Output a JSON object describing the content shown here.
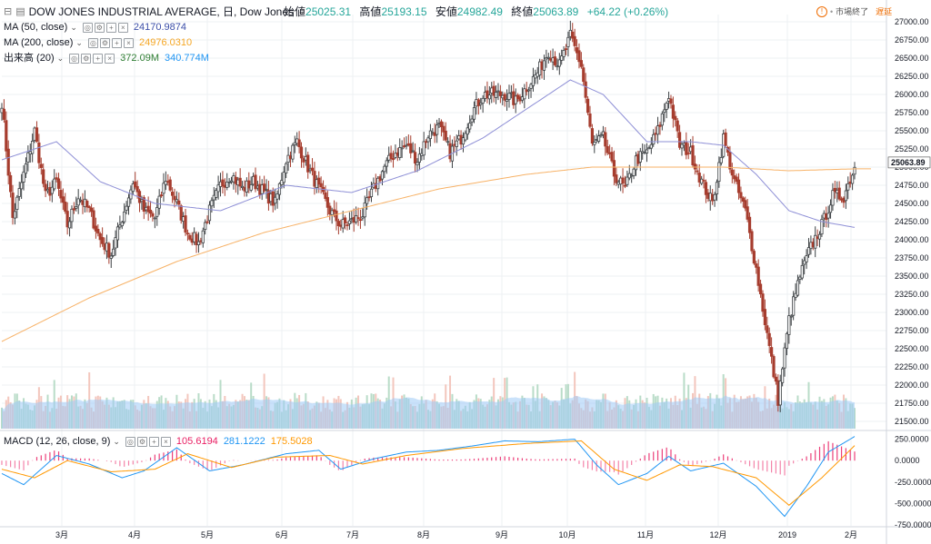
{
  "header": {
    "symbol": "DOW JONES INDUSTRIAL AVERAGE, 日, Dow Jones",
    "open_label": "始値",
    "open": "25025.31",
    "high_label": "高値",
    "high": "25193.15",
    "low_label": "安値",
    "low": "24982.49",
    "close_label": "終値",
    "close": "25063.89",
    "change": "+64.22 (+0.26%)"
  },
  "status": {
    "market": "市場終了",
    "delay": "遅延"
  },
  "indicators": {
    "ma50": {
      "label": "MA (50, close)",
      "value": "24170.9874",
      "color": "#3b4ea8"
    },
    "ma200": {
      "label": "MA (200, close)",
      "value": "24976.0310",
      "color": "#f5a623"
    },
    "volume": {
      "label": "出来高 (20)",
      "value1": "372.09M",
      "value2": "340.774M",
      "color1": "#2e7d32",
      "color2": "#2196f3"
    },
    "macd": {
      "label": "MACD (12, 26, close, 9)",
      "hist": "105.6194",
      "macd": "281.1222",
      "signal": "175.5028",
      "hist_color": "#e91e63",
      "macd_color": "#2196f3",
      "signal_color": "#ff9800"
    }
  },
  "colors": {
    "up": "#3c4043",
    "down": "#a63d2e",
    "up_fill": "#ffffff",
    "ma50": "#8e8fd6",
    "ma200": "#f7b267",
    "vol_up": "#b9dcc8",
    "vol_down": "#f3c6bd",
    "vol_ma": "#9ecbf5",
    "grid": "#eef0f3",
    "axis_text": "#131722",
    "last_price_bg": "#ffffff"
  },
  "chart_data": {
    "type": "candlestick",
    "price_axis_ticks": [
      27000,
      26750,
      26500,
      26250,
      26000,
      25750,
      25500,
      25250,
      25000,
      24750,
      24500,
      24250,
      24000,
      23750,
      23500,
      23250,
      23000,
      22750,
      22500,
      22250,
      22000,
      21750,
      21500
    ],
    "price_axis_labels": [
      "27000.00",
      "26750.00",
      "26500.00",
      "26250.00",
      "26000.00",
      "25750.00",
      "25500.00",
      "25250.00",
      "25000.00",
      "24750.00",
      "24500.00",
      "24250.00",
      "24000.00",
      "23750.00",
      "23500.00",
      "23250.00",
      "23000.00",
      "22750.00",
      "22500.00",
      "22250.00",
      "22000.00",
      "21750.00",
      "21500.00"
    ],
    "ylim": [
      21400,
      27100
    ],
    "last_price": "25063.89",
    "x_labels": [
      "3月",
      "4月",
      "5月",
      "6月",
      "7月",
      "8月",
      "9月",
      "10月",
      "11月",
      "12月",
      "2019",
      "2月"
    ],
    "anchors": [
      {
        "d": 0,
        "p": 25900
      },
      {
        "d": 5,
        "p": 24300
      },
      {
        "d": 10,
        "p": 24900
      },
      {
        "d": 15,
        "p": 25500
      },
      {
        "d": 20,
        "p": 24600
      },
      {
        "d": 25,
        "p": 24800
      },
      {
        "d": 30,
        "p": 24200
      },
      {
        "d": 35,
        "p": 24600
      },
      {
        "d": 40,
        "p": 24400
      },
      {
        "d": 45,
        "p": 24000
      },
      {
        "d": 50,
        "p": 23800
      },
      {
        "d": 55,
        "p": 24300
      },
      {
        "d": 60,
        "p": 24800
      },
      {
        "d": 65,
        "p": 24400
      },
      {
        "d": 70,
        "p": 24300
      },
      {
        "d": 75,
        "p": 24850
      },
      {
        "d": 80,
        "p": 24500
      },
      {
        "d": 85,
        "p": 24100
      },
      {
        "d": 90,
        "p": 23950
      },
      {
        "d": 95,
        "p": 24400
      },
      {
        "d": 100,
        "p": 24750
      },
      {
        "d": 105,
        "p": 24900
      },
      {
        "d": 110,
        "p": 24700
      },
      {
        "d": 115,
        "p": 24800
      },
      {
        "d": 120,
        "p": 24650
      },
      {
        "d": 125,
        "p": 24500
      },
      {
        "d": 130,
        "p": 25100
      },
      {
        "d": 135,
        "p": 25350
      },
      {
        "d": 140,
        "p": 25000
      },
      {
        "d": 145,
        "p": 24700
      },
      {
        "d": 150,
        "p": 24400
      },
      {
        "d": 155,
        "p": 24200
      },
      {
        "d": 160,
        "p": 24250
      },
      {
        "d": 165,
        "p": 24350
      },
      {
        "d": 170,
        "p": 24700
      },
      {
        "d": 175,
        "p": 25000
      },
      {
        "d": 180,
        "p": 25200
      },
      {
        "d": 185,
        "p": 25300
      },
      {
        "d": 190,
        "p": 25100
      },
      {
        "d": 195,
        "p": 25450
      },
      {
        "d": 200,
        "p": 25550
      },
      {
        "d": 205,
        "p": 25200
      },
      {
        "d": 210,
        "p": 25400
      },
      {
        "d": 215,
        "p": 25750
      },
      {
        "d": 220,
        "p": 26000
      },
      {
        "d": 225,
        "p": 26000
      },
      {
        "d": 230,
        "p": 26000
      },
      {
        "d": 235,
        "p": 25900
      },
      {
        "d": 240,
        "p": 26100
      },
      {
        "d": 245,
        "p": 26300
      },
      {
        "d": 250,
        "p": 26600
      },
      {
        "d": 255,
        "p": 26400
      },
      {
        "d": 260,
        "p": 26800
      },
      {
        "d": 265,
        "p": 26400
      },
      {
        "d": 270,
        "p": 25300
      },
      {
        "d": 275,
        "p": 25400
      },
      {
        "d": 280,
        "p": 24900
      },
      {
        "d": 285,
        "p": 24700
      },
      {
        "d": 290,
        "p": 25100
      },
      {
        "d": 295,
        "p": 25200
      },
      {
        "d": 300,
        "p": 25500
      },
      {
        "d": 305,
        "p": 26000
      },
      {
        "d": 310,
        "p": 25300
      },
      {
        "d": 315,
        "p": 25200
      },
      {
        "d": 320,
        "p": 24800
      },
      {
        "d": 325,
        "p": 24500
      },
      {
        "d": 330,
        "p": 25400
      },
      {
        "d": 335,
        "p": 24800
      },
      {
        "d": 340,
        "p": 24400
      },
      {
        "d": 345,
        "p": 23600
      },
      {
        "d": 350,
        "p": 22700
      },
      {
        "d": 355,
        "p": 21800
      },
      {
        "d": 360,
        "p": 22900
      },
      {
        "d": 365,
        "p": 23500
      },
      {
        "d": 370,
        "p": 23900
      },
      {
        "d": 375,
        "p": 24200
      },
      {
        "d": 380,
        "p": 24600
      },
      {
        "d": 385,
        "p": 24600
      },
      {
        "d": 390,
        "p": 25000
      }
    ],
    "ma50_anchors": [
      {
        "d": 0,
        "p": 25100
      },
      {
        "d": 25,
        "p": 25350
      },
      {
        "d": 45,
        "p": 24800
      },
      {
        "d": 70,
        "p": 24500
      },
      {
        "d": 100,
        "p": 24400
      },
      {
        "d": 130,
        "p": 24750
      },
      {
        "d": 160,
        "p": 24650
      },
      {
        "d": 190,
        "p": 24950
      },
      {
        "d": 220,
        "p": 25400
      },
      {
        "d": 240,
        "p": 25800
      },
      {
        "d": 260,
        "p": 26200
      },
      {
        "d": 275,
        "p": 26000
      },
      {
        "d": 295,
        "p": 25350
      },
      {
        "d": 315,
        "p": 25350
      },
      {
        "d": 330,
        "p": 25300
      },
      {
        "d": 345,
        "p": 24900
      },
      {
        "d": 360,
        "p": 24400
      },
      {
        "d": 375,
        "p": 24250
      },
      {
        "d": 390,
        "p": 24170
      }
    ],
    "ma200_anchors": [
      {
        "d": 0,
        "p": 22600
      },
      {
        "d": 40,
        "p": 23200
      },
      {
        "d": 80,
        "p": 23700
      },
      {
        "d": 120,
        "p": 24100
      },
      {
        "d": 160,
        "p": 24400
      },
      {
        "d": 200,
        "p": 24700
      },
      {
        "d": 240,
        "p": 24900
      },
      {
        "d": 270,
        "p": 25000
      },
      {
        "d": 300,
        "p": 25000
      },
      {
        "d": 330,
        "p": 25000
      },
      {
        "d": 360,
        "p": 24950
      },
      {
        "d": 390,
        "p": 24976
      }
    ],
    "macd_axis_ticks": [
      250,
      0,
      -250,
      -500,
      -750
    ],
    "macd_axis_labels": [
      "250.0000",
      "0.0000",
      "-250.0000",
      "-500.0000",
      "-750.0000"
    ],
    "macd_ylim": [
      -760,
      330
    ],
    "macd_anchors": [
      {
        "d": 0,
        "m": -150
      },
      {
        "d": 10,
        "m": -280
      },
      {
        "d": 25,
        "m": 60
      },
      {
        "d": 40,
        "m": -40
      },
      {
        "d": 55,
        "m": -200
      },
      {
        "d": 65,
        "m": -120
      },
      {
        "d": 80,
        "m": 150
      },
      {
        "d": 95,
        "m": -120
      },
      {
        "d": 110,
        "m": -50
      },
      {
        "d": 130,
        "m": 80
      },
      {
        "d": 145,
        "m": 120
      },
      {
        "d": 155,
        "m": -100
      },
      {
        "d": 170,
        "m": 20
      },
      {
        "d": 185,
        "m": 100
      },
      {
        "d": 200,
        "m": 120
      },
      {
        "d": 215,
        "m": 170
      },
      {
        "d": 230,
        "m": 230
      },
      {
        "d": 245,
        "m": 220
      },
      {
        "d": 262,
        "m": 250
      },
      {
        "d": 272,
        "m": -50
      },
      {
        "d": 282,
        "m": -280
      },
      {
        "d": 295,
        "m": -150
      },
      {
        "d": 305,
        "m": 50
      },
      {
        "d": 315,
        "m": -120
      },
      {
        "d": 330,
        "m": -30
      },
      {
        "d": 345,
        "m": -300
      },
      {
        "d": 358,
        "m": -650
      },
      {
        "d": 368,
        "m": -300
      },
      {
        "d": 378,
        "m": 100
      },
      {
        "d": 390,
        "m": 281
      }
    ],
    "signal_anchors": [
      {
        "d": 0,
        "m": -100
      },
      {
        "d": 15,
        "m": -200
      },
      {
        "d": 30,
        "m": 0
      },
      {
        "d": 50,
        "m": -130
      },
      {
        "d": 70,
        "m": -100
      },
      {
        "d": 85,
        "m": 80
      },
      {
        "d": 105,
        "m": -80
      },
      {
        "d": 125,
        "m": 40
      },
      {
        "d": 150,
        "m": 60
      },
      {
        "d": 165,
        "m": -40
      },
      {
        "d": 185,
        "m": 60
      },
      {
        "d": 210,
        "m": 140
      },
      {
        "d": 240,
        "m": 200
      },
      {
        "d": 265,
        "m": 230
      },
      {
        "d": 280,
        "m": -100
      },
      {
        "d": 295,
        "m": -230
      },
      {
        "d": 310,
        "m": -50
      },
      {
        "d": 325,
        "m": -70
      },
      {
        "d": 345,
        "m": -200
      },
      {
        "d": 360,
        "m": -520
      },
      {
        "d": 375,
        "m": -200
      },
      {
        "d": 390,
        "m": 175
      }
    ]
  }
}
